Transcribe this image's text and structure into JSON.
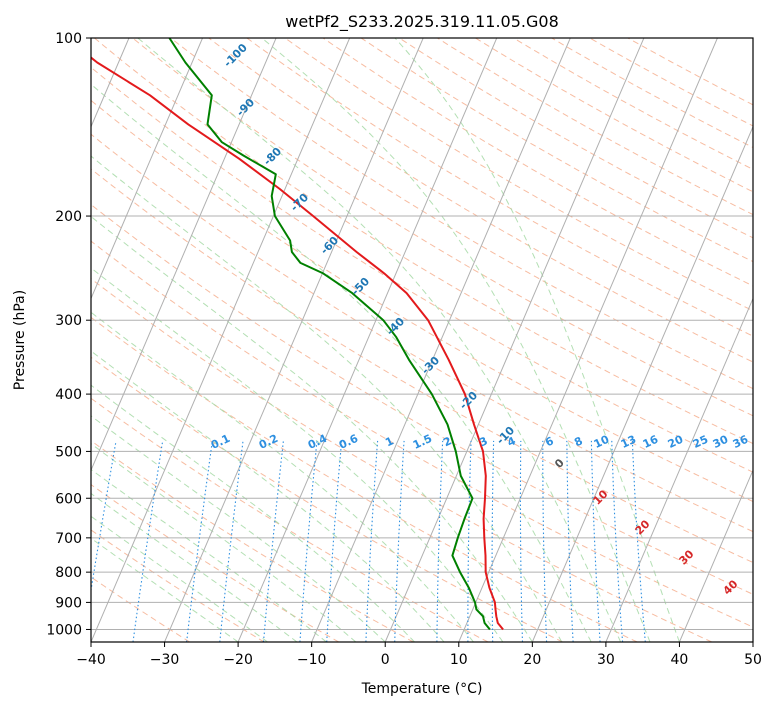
{
  "chart_data": {
    "type": "line",
    "subtype": "skew-t log-p diagram",
    "title": "wetPf2_S233.2025.319.11.05.G08",
    "xlabel": "Temperature (°C)",
    "ylabel": "Pressure (hPa)",
    "xlim": [
      -40,
      50
    ],
    "ylim": [
      1050,
      100
    ],
    "y_scale": "log",
    "grid": true,
    "x_ticks": [
      -40,
      -30,
      -20,
      -10,
      0,
      10,
      20,
      30,
      40,
      50
    ],
    "y_ticks": [
      100,
      200,
      300,
      400,
      500,
      600,
      700,
      800,
      900,
      1000
    ],
    "series": [
      {
        "color": "#e31a1c",
        "pressure": [
          1000,
          975,
          950,
          925,
          900,
          850,
          800,
          750,
          700,
          650,
          600,
          550,
          500,
          450,
          400,
          350,
          300,
          270,
          250,
          230,
          200,
          180,
          160,
          140,
          125,
          110,
          100
        ],
        "temperature": [
          15.3,
          14.2,
          13.6,
          13.1,
          12.6,
          11.0,
          9.6,
          8.6,
          7.4,
          6.2,
          5.2,
          4.0,
          2.2,
          -0.6,
          -3.6,
          -7.8,
          -12.9,
          -17.4,
          -21.6,
          -26.6,
          -34.6,
          -40.7,
          -48.0,
          -56.9,
          -63.8,
          -72.9,
          -78.5
        ]
      },
      {
        "color": "#008000",
        "pressure": [
          1000,
          975,
          950,
          925,
          900,
          850,
          800,
          750,
          700,
          650,
          600,
          550,
          500,
          450,
          400,
          350,
          320,
          300,
          270,
          250,
          240,
          230,
          220,
          200,
          185,
          170,
          158,
          150,
          140,
          125,
          110,
          100
        ],
        "temperature": [
          13.5,
          12.4,
          11.8,
          10.5,
          9.9,
          8.2,
          6.1,
          4.1,
          3.8,
          3.6,
          3.5,
          0.6,
          -1.5,
          -4.2,
          -8.1,
          -13.2,
          -16.3,
          -19.0,
          -24.8,
          -29.9,
          -33.6,
          -35.4,
          -36.3,
          -39.8,
          -41.4,
          -42.1,
          -47.6,
          -51.3,
          -54.3,
          -55.4,
          -60.9,
          -64.5
        ]
      }
    ],
    "background_lines": {
      "isotherm_labels": [
        "-100",
        "-90",
        "-80",
        "-70",
        "-60",
        "-50",
        "-40",
        "-30",
        "-20",
        "-10"
      ],
      "mixing_ratio_labels": [
        "0.1",
        "0.2",
        "0.4",
        "0.6",
        "1",
        "1.5",
        "2",
        "3",
        "4",
        "6",
        "8",
        "10",
        "13",
        "16",
        "20",
        "25",
        "30",
        "36"
      ],
      "moist_adiabat_labels": [
        "0",
        "10",
        "20",
        "30",
        "40"
      ],
      "isotherm_color": "#1f77b4",
      "mixing_ratio_color": "#2d8fe0",
      "moist_label_color": "#d62728",
      "dry_adiabat_color": "#f4a582",
      "moist_adiabat_color": "#a6d9a6",
      "grid_color": "#b0b0b0"
    }
  }
}
